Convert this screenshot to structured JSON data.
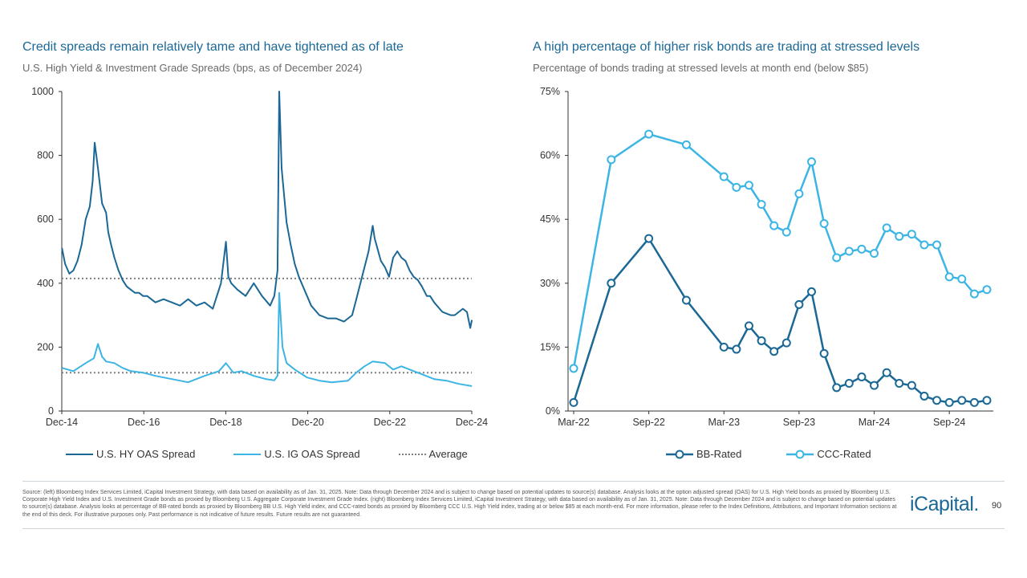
{
  "left": {
    "title": "Credit spreads remain relatively tame and have tightened as of late",
    "subtitle": "U.S. High Yield & Investment Grade Spreads (bps, as of December 2024)"
  },
  "right": {
    "title": "A high percentage of higher risk bonds are trading at stressed levels",
    "subtitle": "Percentage of bonds trading at stressed levels at month end (below $85)"
  },
  "chart_data": [
    {
      "type": "line",
      "title": "U.S. High Yield & Investment Grade Spreads (bps, as of December 2024)",
      "ylim": [
        0,
        1000
      ],
      "yticks": [
        "0",
        "200",
        "400",
        "600",
        "800",
        "1000"
      ],
      "xlim": [
        2014.917,
        2024.917
      ],
      "xticks": [
        {
          "label": "Dec-14",
          "x": 2014.917
        },
        {
          "label": "Dec-16",
          "x": 2016.917
        },
        {
          "label": "Dec-18",
          "x": 2018.917
        },
        {
          "label": "Dec-20",
          "x": 2020.917
        },
        {
          "label": "Dec-22",
          "x": 2022.917
        },
        {
          "label": "Dec-24",
          "x": 2024.917
        }
      ],
      "series": [
        {
          "name": "U.S. HY OAS Spread",
          "color": "#1b6896",
          "x": [
            2014.92,
            2015.0,
            2015.1,
            2015.2,
            2015.3,
            2015.4,
            2015.5,
            2015.6,
            2015.67,
            2015.72,
            2015.8,
            2015.9,
            2016.0,
            2016.05,
            2016.12,
            2016.2,
            2016.3,
            2016.4,
            2016.5,
            2016.6,
            2016.7,
            2016.8,
            2016.9,
            2017.0,
            2017.2,
            2017.4,
            2017.6,
            2017.8,
            2018.0,
            2018.2,
            2018.4,
            2018.6,
            2018.8,
            2018.92,
            2018.98,
            2019.05,
            2019.2,
            2019.4,
            2019.6,
            2019.8,
            2020.0,
            2020.1,
            2020.18,
            2020.22,
            2020.28,
            2020.4,
            2020.5,
            2020.6,
            2020.7,
            2020.8,
            2020.9,
            2021.0,
            2021.2,
            2021.4,
            2021.6,
            2021.8,
            2022.0,
            2022.1,
            2022.2,
            2022.3,
            2022.4,
            2022.5,
            2022.55,
            2022.7,
            2022.8,
            2022.9,
            2023.0,
            2023.1,
            2023.2,
            2023.3,
            2023.4,
            2023.5,
            2023.6,
            2023.7,
            2023.82,
            2023.9,
            2024.0,
            2024.2,
            2024.4,
            2024.5,
            2024.6,
            2024.7,
            2024.8,
            2024.88,
            2024.92
          ],
          "values": [
            510,
            460,
            430,
            440,
            470,
            520,
            600,
            640,
            720,
            840,
            760,
            650,
            620,
            560,
            520,
            480,
            440,
            410,
            390,
            380,
            370,
            370,
            360,
            360,
            340,
            350,
            340,
            330,
            350,
            330,
            340,
            320,
            400,
            530,
            420,
            400,
            380,
            360,
            400,
            360,
            330,
            360,
            440,
            1000,
            760,
            590,
            520,
            460,
            420,
            390,
            360,
            330,
            300,
            290,
            290,
            280,
            300,
            350,
            400,
            450,
            500,
            580,
            540,
            470,
            450,
            420,
            480,
            500,
            480,
            470,
            440,
            420,
            410,
            390,
            360,
            360,
            340,
            310,
            300,
            300,
            310,
            320,
            310,
            260,
            285
          ]
        },
        {
          "name": "U.S. IG OAS Spread",
          "color": "#3cb5e5",
          "x": [
            2014.92,
            2015.2,
            2015.5,
            2015.7,
            2015.8,
            2015.9,
            2016.0,
            2016.2,
            2016.4,
            2016.6,
            2016.9,
            2017.2,
            2017.6,
            2018.0,
            2018.4,
            2018.75,
            2018.92,
            2019.1,
            2019.3,
            2019.6,
            2019.9,
            2020.1,
            2020.18,
            2020.22,
            2020.3,
            2020.4,
            2020.6,
            2020.9,
            2021.2,
            2021.5,
            2021.9,
            2022.1,
            2022.3,
            2022.5,
            2022.8,
            2023.0,
            2023.2,
            2023.4,
            2023.7,
            2024.0,
            2024.3,
            2024.6,
            2024.92
          ],
          "values": [
            135,
            125,
            150,
            165,
            210,
            170,
            155,
            150,
            135,
            125,
            120,
            110,
            100,
            90,
            110,
            125,
            150,
            120,
            125,
            110,
            100,
            96,
            110,
            370,
            200,
            150,
            130,
            105,
            95,
            90,
            95,
            120,
            140,
            155,
            150,
            130,
            140,
            130,
            115,
            100,
            95,
            85,
            78
          ]
        },
        {
          "name": "Average",
          "color": "#7f7f7f",
          "style": "dotted",
          "levels": [
            415,
            120
          ]
        }
      ]
    },
    {
      "type": "line",
      "title": "Percentage of bonds trading at stressed levels at month end (below $85)",
      "ylim": [
        0,
        75
      ],
      "yticks": [
        "0%",
        "15%",
        "30%",
        "45%",
        "60%",
        "75%"
      ],
      "xticks": [
        {
          "label": "Mar-22",
          "i": 0
        },
        {
          "label": "Sep-22",
          "i": 6
        },
        {
          "label": "Mar-23",
          "i": 12
        },
        {
          "label": "Sep-23",
          "i": 18
        },
        {
          "label": "Mar-24",
          "i": 24
        },
        {
          "label": "Sep-24",
          "i": 30
        }
      ],
      "n_months": 34,
      "series": [
        {
          "name": "BB-Rated",
          "color": "#1b6896",
          "months": [
            0,
            3,
            6,
            9,
            12,
            13,
            14,
            15,
            16,
            17,
            18,
            19,
            20,
            21,
            22,
            23,
            24,
            25,
            26,
            27,
            28,
            29,
            30,
            31,
            32,
            33
          ],
          "values": [
            2,
            30,
            40.5,
            26,
            15,
            14.5,
            20,
            16.5,
            14,
            16,
            25,
            28,
            13.5,
            5.5,
            6.5,
            8,
            6,
            9,
            6.5,
            6,
            3.5,
            2.5,
            2,
            2.5,
            2,
            2.5
          ]
        },
        {
          "name": "CCC-Rated",
          "color": "#3cb5e5",
          "months": [
            0,
            3,
            6,
            9,
            12,
            13,
            14,
            15,
            16,
            17,
            18,
            19,
            20,
            21,
            22,
            23,
            24,
            25,
            26,
            27,
            28,
            29,
            30,
            31,
            32,
            33
          ],
          "values": [
            10,
            59,
            65,
            62.5,
            55,
            52.5,
            53,
            48.5,
            43.5,
            42,
            51,
            58.5,
            44,
            36,
            37.5,
            38,
            37,
            43,
            41,
            41.5,
            39,
            39,
            31.5,
            31,
            27.5,
            28.5
          ]
        }
      ]
    }
  ],
  "legend_left": [
    "U.S. HY OAS Spread",
    "U.S. IG OAS Spread",
    "Average"
  ],
  "legend_right": [
    "BB-Rated",
    "CCC-Rated"
  ],
  "footer": {
    "source": "Source: (left) Bloomberg Index Services Limited, iCapital Investment Strategy, with data based on availability as of Jan. 31, 2025. Note: Data through December 2024 and is subject to change based on potential updates to source(s) database. Analysis looks at the option adjusted spread (OAS) for U.S. High Yield bonds as proxied by Bloomberg U.S. Corporate High Yield Index and U.S. Investment Grade bonds as proxied by Bloomberg U.S. Aggregate Corporate Investment Grade Index. (right) Bloomberg Index Services Limited, iCapital Investment Strategy, with data based on availability as of Jan. 31, 2025. Note: Data through December 2024 and is subject to change based on potential updates to source(s) database. Analysis looks at percentage of BB-rated bonds as proxied by Bloomberg BB U.S. High Yield index, and CCC-rated bonds as proxied by Bloomberg CCC U.S. High Yield index, trading at or below $85 at each month-end. For more information, please refer to the Index Definitions, Attributions, and Important Information sections at the end of this deck. For illustrative purposes only. Past performance is not indicative of future results. Future results are not guaranteed.",
    "logo": "iCapital.",
    "page": "90"
  }
}
